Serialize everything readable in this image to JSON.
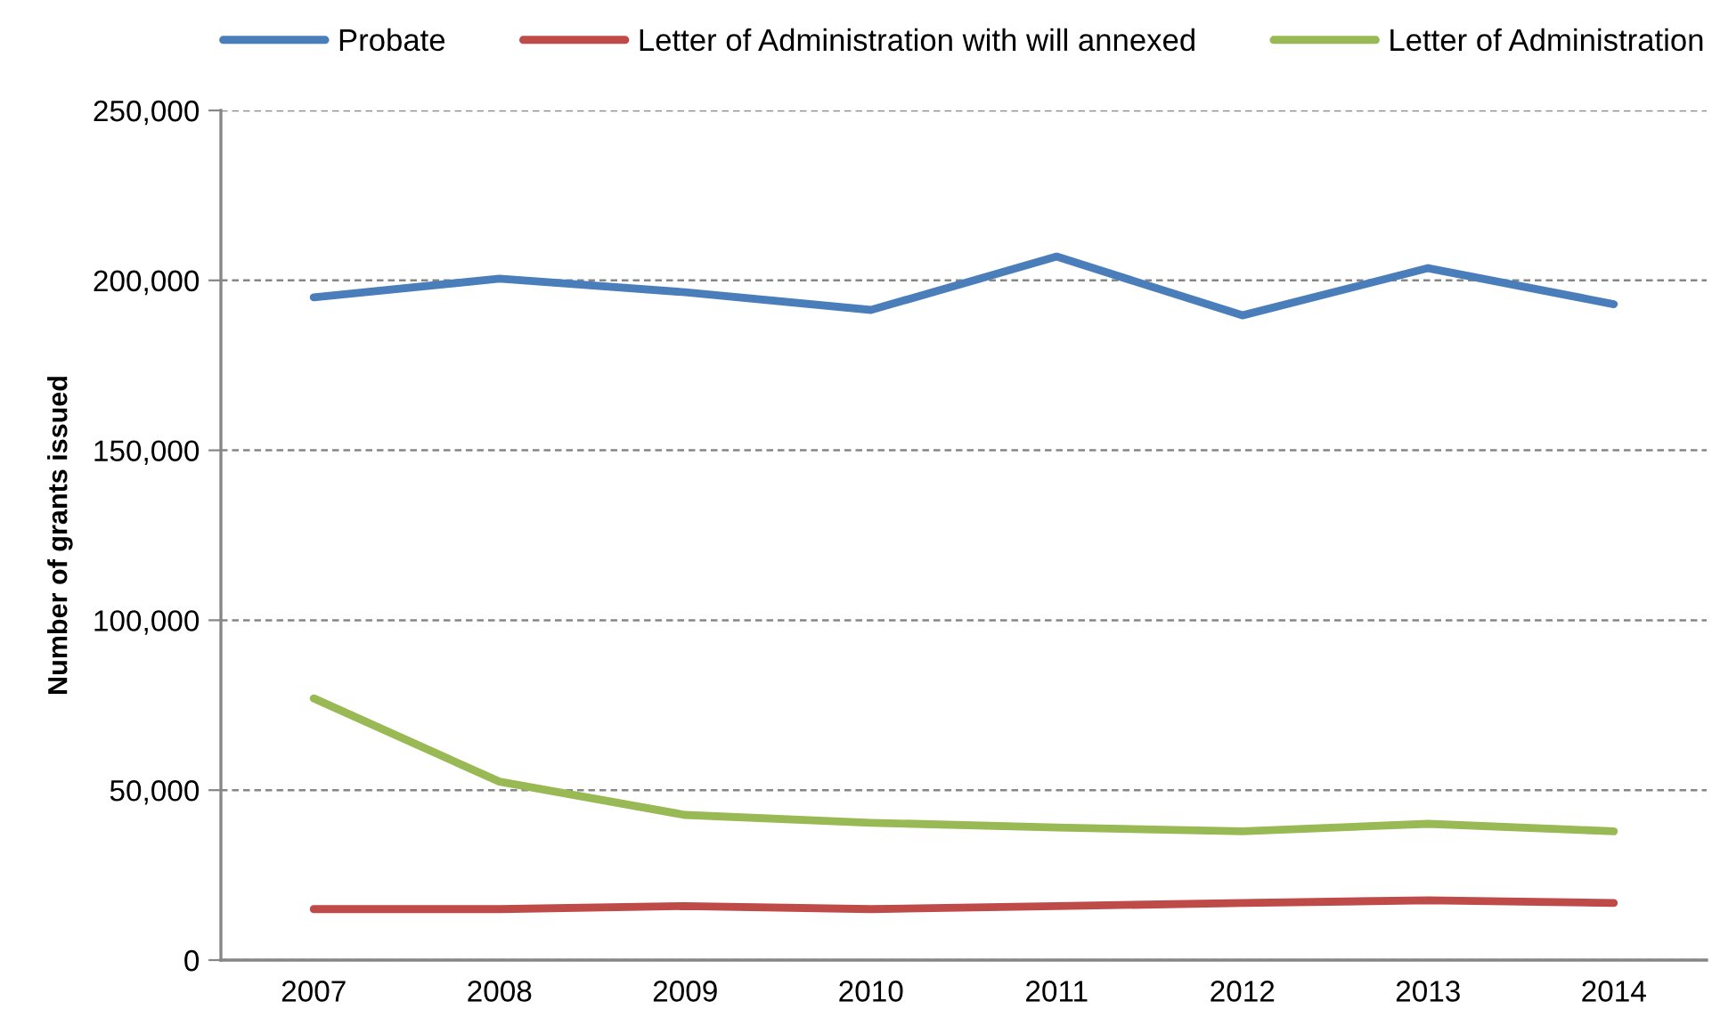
{
  "chart_data": {
    "type": "line",
    "categories": [
      "2007",
      "2008",
      "2009",
      "2010",
      "2011",
      "2012",
      "2013",
      "2014"
    ],
    "ylabel": "Number of grants issued",
    "series": [
      {
        "name": "Probate",
        "color": "#4a7ebb",
        "values": [
          195000,
          200500,
          196500,
          191300,
          207000,
          189700,
          203600,
          193000
        ]
      },
      {
        "name": "Letter of Administration with will annexed",
        "color": "#be4b48",
        "values": [
          15000,
          15000,
          15900,
          15000,
          15900,
          16800,
          17600,
          16800
        ]
      },
      {
        "name": "Letter of Administration",
        "color": "#98b954",
        "values": [
          77000,
          52500,
          42700,
          40400,
          39000,
          37900,
          40100,
          37900
        ]
      }
    ],
    "ylim": [
      0,
      250000
    ],
    "yticks": [
      {
        "value": 0,
        "label": "0"
      },
      {
        "value": 50000,
        "label": "50,000"
      },
      {
        "value": 100000,
        "label": "100,000"
      },
      {
        "value": 150000,
        "label": "150,000"
      },
      {
        "value": 200000,
        "label": "200,000"
      },
      {
        "value": 250000,
        "label": "250,000"
      }
    ],
    "grid": "y",
    "legend": "top",
    "marker": "none",
    "line_style": "solid"
  }
}
